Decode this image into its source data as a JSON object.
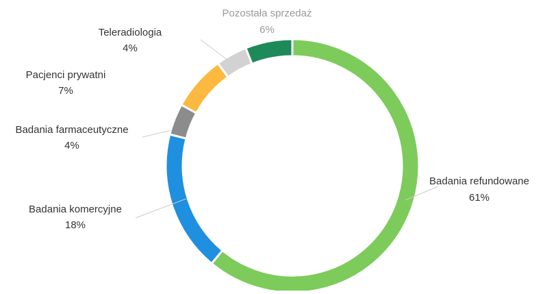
{
  "chart_data": {
    "type": "donut",
    "categories": [
      "Badania refundowane",
      "Badania komercyjne",
      "Badania farmaceutyczne",
      "Pacjenci prywatni",
      "Teleradiologia",
      "Pozostała sprzedaż"
    ],
    "values": [
      61,
      18,
      4,
      7,
      4,
      6
    ],
    "value_labels": [
      "61%",
      "18%",
      "4%",
      "7%",
      "4%",
      "6%"
    ],
    "colors": [
      "#7dcb5b",
      "#1f8fe0",
      "#8c8c8c",
      "#fbb940",
      "#d2d2d2",
      "#1e8a5a"
    ]
  }
}
